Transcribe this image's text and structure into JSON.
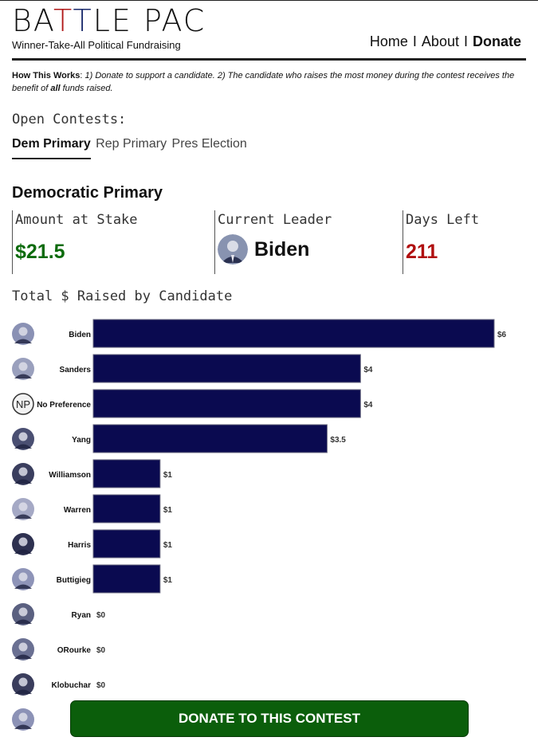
{
  "header": {
    "logo": {
      "part1": "BA",
      "t1": "T",
      "t2": "T",
      "part2": "LE PAC"
    },
    "tagline": "Winner-Take-All Political Fundraising",
    "nav": [
      {
        "label": "Home",
        "active": false
      },
      {
        "label": "About",
        "active": false
      },
      {
        "label": "Donate",
        "active": true
      }
    ],
    "nav_separator": "I"
  },
  "how_it_works": {
    "label": "How This Works",
    "text_part1": " 1) Donate to support a candidate. 2) The candidate who raises the most money during the contest receives the benefit of ",
    "text_bold": "all",
    "text_part2": " funds raised."
  },
  "contests": {
    "label": "Open Contests:",
    "tabs": [
      {
        "label": "Dem Primary",
        "active": true
      },
      {
        "label": "Rep Primary",
        "active": false
      },
      {
        "label": "Pres Election",
        "active": false
      }
    ]
  },
  "contest": {
    "title": "Democratic Primary",
    "amount_label": "Amount at Stake",
    "amount_value": "$21.5",
    "leader_label": "Current Leader",
    "leader_value": "Biden",
    "days_label": "Days Left",
    "days_value": "211"
  },
  "chart_data": {
    "type": "bar",
    "title": "Total $ Raised by Candidate",
    "orientation": "horizontal",
    "categories": [
      "Biden",
      "Sanders",
      "No Preference",
      "Yang",
      "Williamson",
      "Warren",
      "Harris",
      "Buttigieg",
      "Ryan",
      "ORourke",
      "Klobuchar",
      ""
    ],
    "values": [
      6,
      4,
      4,
      3.5,
      1,
      1,
      1,
      1,
      0,
      0,
      0,
      null
    ],
    "value_labels": [
      "$6",
      "$4",
      "$4",
      "$3.5",
      "$1",
      "$1",
      "$1",
      "$1",
      "$0",
      "$0",
      "$0",
      ""
    ],
    "bar_color": "#0a0a50",
    "avatar_initials": {
      "No Preference": "NP"
    }
  },
  "donate_button": "DONATE TO THIS CONTEST",
  "colors": {
    "amount": "#0d6b0d",
    "days": "#b01010",
    "donate": "#0b5e0b"
  }
}
